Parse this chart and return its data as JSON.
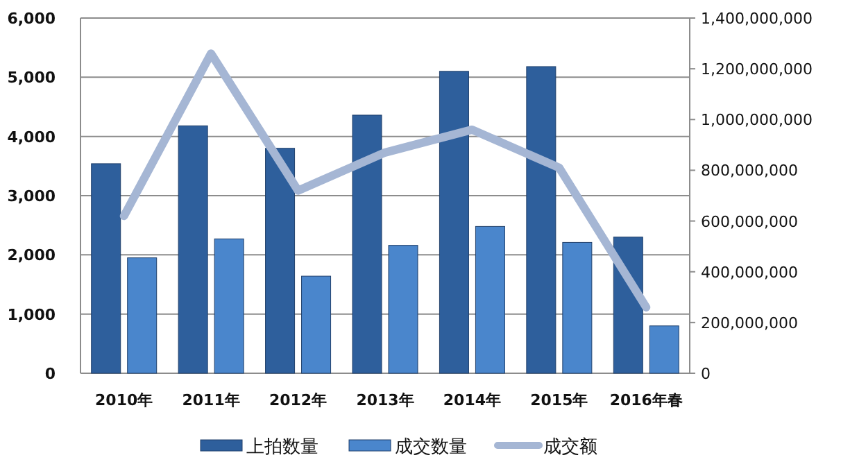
{
  "chart_data": {
    "type": "bar",
    "categories": [
      "2010年",
      "2011年",
      "2012年",
      "2013年",
      "2014年",
      "2015年",
      "2016年春"
    ],
    "series": [
      {
        "name": "上拍数量",
        "color": "#2e5f9c",
        "values": [
          3540,
          4180,
          3800,
          4360,
          5100,
          5180,
          2300
        ]
      },
      {
        "name": "成交数量",
        "color": "#4a86cc",
        "values": [
          1950,
          2270,
          1640,
          2160,
          2480,
          2210,
          800
        ]
      },
      {
        "name": "成交额",
        "type": "line",
        "axis": "y2",
        "color": "#a5b6d4",
        "values": [
          620000000,
          1260000000,
          720000000,
          870000000,
          960000000,
          810000000,
          260000000
        ]
      }
    ],
    "ylim": [
      0,
      6000
    ],
    "yticks": [
      {
        "value": 0,
        "label": "0"
      },
      {
        "value": 1000,
        "label": "1,000"
      },
      {
        "value": 2000,
        "label": "2,000"
      },
      {
        "value": 3000,
        "label": "3,000"
      },
      {
        "value": 4000,
        "label": "4,000"
      },
      {
        "value": 5000,
        "label": "5,000"
      },
      {
        "value": 6000,
        "label": "6,000"
      }
    ],
    "y2lim": [
      0,
      1400000000
    ],
    "y2ticks": [
      {
        "value": 0,
        "label": "0"
      },
      {
        "value": 200000000,
        "label": "200,000,000"
      },
      {
        "value": 400000000,
        "label": "400,000,000"
      },
      {
        "value": 600000000,
        "label": "600,000,000"
      },
      {
        "value": 800000000,
        "label": "800,000,000"
      },
      {
        "value": 1000000000,
        "label": "1,000,000,000"
      },
      {
        "value": 1200000000,
        "label": "1,200,000,000"
      },
      {
        "value": 1400000000,
        "label": "1,400,000,000"
      }
    ],
    "grid": "y",
    "legend": "bottom"
  }
}
